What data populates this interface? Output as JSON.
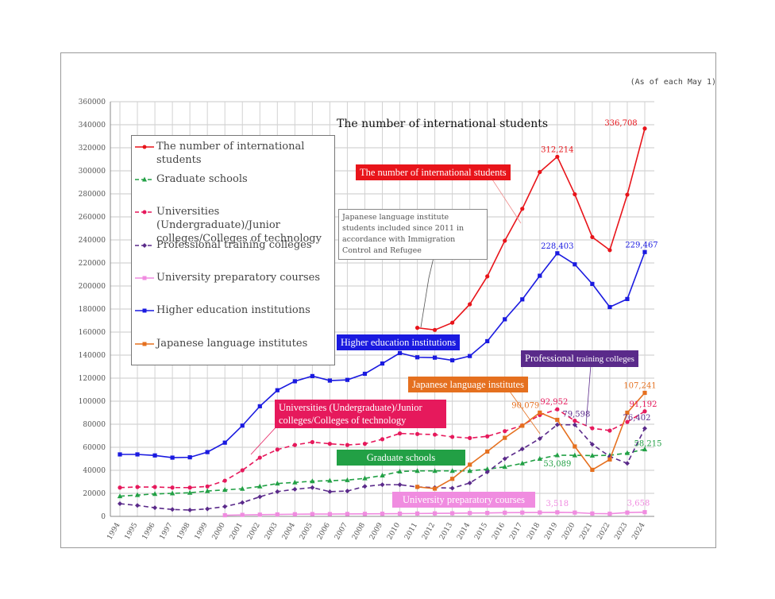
{
  "note": "(As of each May 1)",
  "colors": {
    "total": "#e8141a",
    "grad": "#22a045",
    "univ": "#e6195c",
    "prof": "#5a2a8a",
    "prep": "#f08ce0",
    "higher": "#1a1ae0",
    "jlang": "#e5701f"
  },
  "chart_data": {
    "type": "line",
    "title": "The number of international students",
    "ylim": [
      0,
      360000
    ],
    "yticks": [
      "0",
      "20000",
      "40000",
      "60000",
      "80000",
      "100000",
      "120000",
      "140000",
      "160000",
      "180000",
      "200000",
      "220000",
      "240000",
      "260000",
      "280000",
      "300000",
      "320000",
      "340000",
      "360000"
    ],
    "x": [
      "1994",
      "1995",
      "1996",
      "1997",
      "1998",
      "1999",
      "2000",
      "2001",
      "2002",
      "2003",
      "2004",
      "2005",
      "2006",
      "2007",
      "2008",
      "2009",
      "2010",
      "2011",
      "2012",
      "2013",
      "2014",
      "2015",
      "2016",
      "2017",
      "2018",
      "2019",
      "2020",
      "2021",
      "2022",
      "2023",
      "2024"
    ],
    "grid": true,
    "legend_position": "top-left",
    "series": [
      {
        "key": "total",
        "name": "The number of international students",
        "marker": "circle",
        "dash": false,
        "values": [
          null,
          null,
          null,
          null,
          null,
          null,
          null,
          null,
          null,
          null,
          null,
          null,
          null,
          null,
          null,
          null,
          null,
          163697,
          161848,
          168145,
          184155,
          208379,
          239287,
          267042,
          298980,
          312214,
          279597,
          242444,
          231146,
          279274,
          336708
        ]
      },
      {
        "key": "grad",
        "name": "Graduate schools",
        "marker": "triangle",
        "dash": true,
        "values": [
          17500,
          18500,
          19500,
          20000,
          20500,
          22000,
          23000,
          24000,
          26000,
          28500,
          29500,
          30500,
          31000,
          31500,
          33000,
          35500,
          39000,
          39500,
          39500,
          39500,
          39500,
          41000,
          43000,
          46000,
          50000,
          53089,
          53000,
          52800,
          53000,
          55000,
          58215
        ]
      },
      {
        "key": "univ",
        "name": "Universities (Undergraduate)/Junior colleges/Colleges of technology",
        "marker": "circle",
        "dash": true,
        "values": [
          25000,
          25500,
          25500,
          25000,
          25000,
          26000,
          31000,
          40000,
          51000,
          58000,
          62000,
          64500,
          63000,
          62000,
          63000,
          67000,
          72000,
          71500,
          71000,
          69000,
          68000,
          69500,
          74000,
          79000,
          88000,
          92952,
          83000,
          76500,
          74500,
          82000,
          91192
        ]
      },
      {
        "key": "prof",
        "name": "Professional training colleges",
        "marker": "diamond",
        "dash": true,
        "values": [
          11000,
          9500,
          7500,
          6000,
          5500,
          6500,
          8500,
          12000,
          17000,
          21500,
          23500,
          25000,
          21500,
          22000,
          26000,
          27500,
          27500,
          25500,
          25000,
          24500,
          29000,
          38500,
          50000,
          58500,
          67500,
          79598,
          79500,
          62500,
          52000,
          46000,
          76402
        ]
      },
      {
        "key": "prep",
        "name": "University preparatory courses",
        "marker": "square",
        "dash": false,
        "values": [
          null,
          null,
          null,
          null,
          null,
          null,
          1000,
          1300,
          1500,
          1700,
          1900,
          2000,
          2000,
          2100,
          2200,
          2300,
          2400,
          2500,
          2600,
          2700,
          2900,
          3000,
          3200,
          3300,
          3400,
          3518,
          3300,
          2500,
          2300,
          3300,
          3658
        ]
      },
      {
        "key": "higher",
        "name": "Higher education institutions",
        "marker": "square",
        "dash": false,
        "values": [
          53800,
          53800,
          52900,
          51000,
          51300,
          55800,
          64000,
          78800,
          95600,
          109500,
          117300,
          121800,
          117900,
          118500,
          123800,
          132700,
          141800,
          138100,
          137800,
          135500,
          139200,
          152100,
          171100,
          188400,
          208900,
          228403,
          218800,
          201800,
          181700,
          188700,
          229467
        ]
      },
      {
        "key": "jlang",
        "name": "Japanese language institutes",
        "marker": "square",
        "dash": false,
        "values": [
          null,
          null,
          null,
          null,
          null,
          null,
          null,
          null,
          null,
          null,
          null,
          null,
          null,
          null,
          null,
          null,
          null,
          25600,
          24100,
          32600,
          44900,
          56300,
          68200,
          78700,
          90079,
          83800,
          60700,
          40400,
          49400,
          90000,
          107241
        ]
      }
    ],
    "data_labels": [
      {
        "text": "336,708",
        "key": "total",
        "i": 30
      },
      {
        "text": "312,214",
        "key": "total",
        "i": 25
      },
      {
        "text": "228,403",
        "key": "higher",
        "i": 25
      },
      {
        "text": "229,467",
        "key": "higher",
        "i": 30
      },
      {
        "text": "107,241",
        "key": "jlang",
        "i": 30
      },
      {
        "text": "90,079",
        "key": "jlang",
        "i": 24
      },
      {
        "text": "92,952",
        "key": "univ",
        "i": 25
      },
      {
        "text": "91,192",
        "key": "univ",
        "i": 30
      },
      {
        "text": "79,598",
        "key": "prof",
        "i": 25
      },
      {
        "text": "76,402",
        "key": "prof",
        "i": 30
      },
      {
        "text": "53,089",
        "key": "grad",
        "i": 25
      },
      {
        "text": "58,215",
        "key": "grad",
        "i": 30
      },
      {
        "text": "3,518",
        "key": "prep",
        "i": 25
      },
      {
        "text": "3,658",
        "key": "prep",
        "i": 30
      }
    ],
    "tags": {
      "total": "The number of international students",
      "higher": "Higher education institutions",
      "jlang": "Japanese language institutes",
      "prof_a": "Professional ",
      "prof_b": "training colleges",
      "univ_a": "Universities (Undergraduate)/Junior",
      "univ_b": "colleges/Colleges of technology",
      "grad": "Graduate schools",
      "prep": "University preparatory courses"
    },
    "callout": "Japanese language institute students included since 2011 in accordance with Immigration Control and Refugee"
  }
}
